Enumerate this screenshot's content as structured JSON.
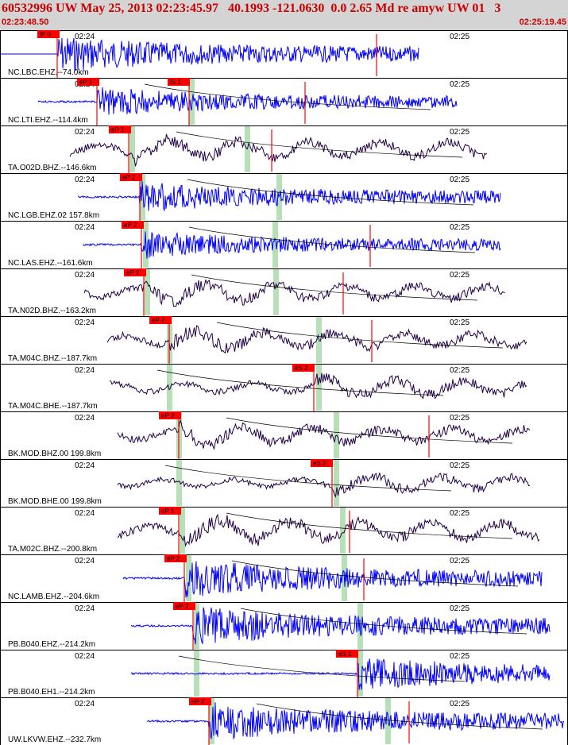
{
  "header": {
    "title": "60532996 UW May 25, 2013 02:23:45.97   40.1993 -121.0630  0.0 2.65 Md re amyw UW 01   3",
    "start_time": "02:23:48.50",
    "end_time": "02:25:19.45"
  },
  "colors": {
    "header_bg": "#d4d4d4",
    "header_text": "#cc0000",
    "blue_trace": "#0000ff",
    "dark_trace": "#220044",
    "pick_box": "#ff0000",
    "phase_window": "#b8e0b8",
    "theoretical_curve": "#000000"
  },
  "chart_data": {
    "type": "waveform-record-section",
    "time_tick_labels": [
      "02:24",
      "02:25"
    ],
    "traces": [
      {
        "label": "NC.LBC.EHZ.--74.0km",
        "color": "blue",
        "pick": "iP 0",
        "pick2": ""
      },
      {
        "label": "NC.LTI.EHZ.--114.4km",
        "color": "blue",
        "pick": "eP 1",
        "pick2": "iS 1"
      },
      {
        "label": "TA.O02D.BHZ.--146.6km",
        "color": "dark",
        "pick": "eP 1",
        "pick2": ""
      },
      {
        "label": "NC.LGB.EHZ.02 157.8km",
        "color": "blue",
        "pick": "eP 2",
        "pick2": ""
      },
      {
        "label": "NC.LAS.EHZ.--161.6km",
        "color": "blue",
        "pick": "eP 2",
        "pick2": ""
      },
      {
        "label": "TA.N02D.BHZ.--163.2km",
        "color": "dark",
        "pick": "eP 2",
        "pick2": ""
      },
      {
        "label": "TA.M04C.BHZ.--187.7km",
        "color": "dark",
        "pick": "eP 2",
        "pick2": ""
      },
      {
        "label": "TA.M04C.BHE.--187.7km",
        "color": "dark",
        "pick": "",
        "pick2": "eS 2"
      },
      {
        "label": "BK.MOD.BHZ.00 199.8km",
        "color": "dark",
        "pick": "eP 2",
        "pick2": ""
      },
      {
        "label": "BK.MOD.BHE.00 199.8km",
        "color": "dark",
        "pick": "",
        "pick2": "eS 2"
      },
      {
        "label": "TA.M02C.BHZ.--200.8km",
        "color": "dark",
        "pick": "eP 1",
        "pick2": ""
      },
      {
        "label": "NC.LAMB.EHZ.--204.6km",
        "color": "blue",
        "pick": "eP 2",
        "pick2": ""
      },
      {
        "label": "PB.B040.EHZ.--214.2km",
        "color": "blue",
        "pick": "eP 2",
        "pick2": ""
      },
      {
        "label": "PB.B040.EH1.--214.2km",
        "color": "blue",
        "pick": "",
        "pick2": "eS 1"
      },
      {
        "label": "UW.LKVW.EHZ.--232.7km",
        "color": "blue",
        "pick": "eP 2",
        "pick2": ""
      }
    ]
  }
}
